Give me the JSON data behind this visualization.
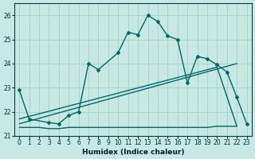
{
  "xlabel": "Humidex (Indice chaleur)",
  "background_color": "#c8e8e4",
  "grid_color": "#a8d4cc",
  "line_color": "#006868",
  "xlim": [
    -0.5,
    23.5
  ],
  "ylim": [
    21,
    26.5
  ],
  "xticks": [
    0,
    1,
    2,
    3,
    4,
    5,
    6,
    7,
    8,
    9,
    10,
    11,
    12,
    13,
    14,
    15,
    16,
    17,
    18,
    19,
    20,
    21,
    22,
    23
  ],
  "yticks": [
    21,
    22,
    23,
    24,
    25,
    26
  ],
  "series": [
    {
      "x": [
        0,
        1,
        2,
        3,
        4,
        5,
        6,
        7,
        8,
        9,
        10,
        11,
        12,
        13,
        14,
        15,
        16,
        17,
        18,
        19,
        20,
        21,
        22
      ],
      "y": [
        21.35,
        21.35,
        21.35,
        21.3,
        21.3,
        21.35,
        21.35,
        21.35,
        21.35,
        21.35,
        21.35,
        21.35,
        21.35,
        21.35,
        21.35,
        21.35,
        21.35,
        21.35,
        21.35,
        21.35,
        21.4,
        21.4,
        21.4
      ],
      "style": "solid",
      "marker": false,
      "linewidth": 1.0
    },
    {
      "x": [
        0,
        22
      ],
      "y": [
        21.5,
        24.0
      ],
      "style": "solid",
      "marker": false,
      "linewidth": 1.0
    },
    {
      "x": [
        0,
        20,
        22
      ],
      "y": [
        21.7,
        23.85,
        21.4
      ],
      "style": "solid",
      "marker": false,
      "linewidth": 1.0
    },
    {
      "x": [
        0,
        1,
        3,
        4,
        5,
        6,
        7,
        8,
        10,
        11,
        12,
        13,
        14,
        15,
        16,
        17,
        18,
        19,
        20,
        21,
        22,
        23
      ],
      "y": [
        22.9,
        21.7,
        21.55,
        21.5,
        21.85,
        22.0,
        24.0,
        23.75,
        24.45,
        25.3,
        25.2,
        26.0,
        25.75,
        25.15,
        25.0,
        23.2,
        24.3,
        24.2,
        23.95,
        23.65,
        22.6,
        21.5
      ],
      "style": "solid",
      "marker": true,
      "linewidth": 1.0
    }
  ]
}
